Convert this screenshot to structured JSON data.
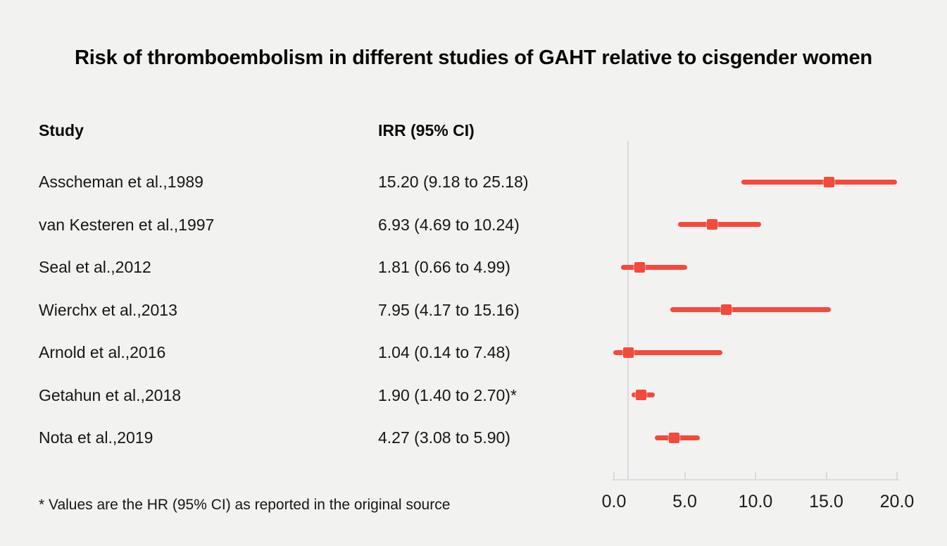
{
  "title": "Risk of thromboembolism in different studies of GAHT relative to cisgender women",
  "columns": {
    "study": "Study",
    "irr": "IRR (95% CI)"
  },
  "footnote": "* Values are the HR (95% CI) as reported in the original source",
  "colors": {
    "background": "#f2f2f0",
    "accent_red": "#f5493c",
    "axis_gray": "#d8dce0"
  },
  "chart_data": {
    "type": "forest",
    "title": "Risk of thromboembolism in different studies of GAHT relative to cisgender women",
    "xlabel": "",
    "xlim": [
      0,
      20
    ],
    "xticks": [
      0,
      5,
      10,
      15,
      20
    ],
    "xtick_labels": [
      "0.0",
      "5.0",
      "10.0",
      "15.0",
      "20.0"
    ],
    "reference_line": 1.0,
    "grid": false,
    "legend": false,
    "rows": [
      {
        "study": "Asscheman et al.,1989",
        "value_label": "15.20 (9.18 to 25.18)",
        "est": 15.2,
        "lo": 9.18,
        "hi": 25.18
      },
      {
        "study": "van Kesteren et al.,1997",
        "value_label": "6.93 (4.69 to 10.24)",
        "est": 6.93,
        "lo": 4.69,
        "hi": 10.24
      },
      {
        "study": "Seal et al.,2012",
        "value_label": "1.81 (0.66 to 4.99)",
        "est": 1.81,
        "lo": 0.66,
        "hi": 4.99
      },
      {
        "study": "Wierchx et al.,2013",
        "value_label": "7.95 (4.17 to 15.16)",
        "est": 7.95,
        "lo": 4.17,
        "hi": 15.16
      },
      {
        "study": "Arnold et al.,2016",
        "value_label": "1.04 (0.14 to 7.48)",
        "est": 1.04,
        "lo": 0.14,
        "hi": 7.48
      },
      {
        "study": "Getahun et al.,2018",
        "value_label": "1.90 (1.40 to 2.70)*",
        "est": 1.9,
        "lo": 1.4,
        "hi": 2.7
      },
      {
        "study": "Nota et al.,2019",
        "value_label": "4.27 (3.08 to 5.90)",
        "est": 4.27,
        "lo": 3.08,
        "hi": 5.9
      }
    ]
  }
}
